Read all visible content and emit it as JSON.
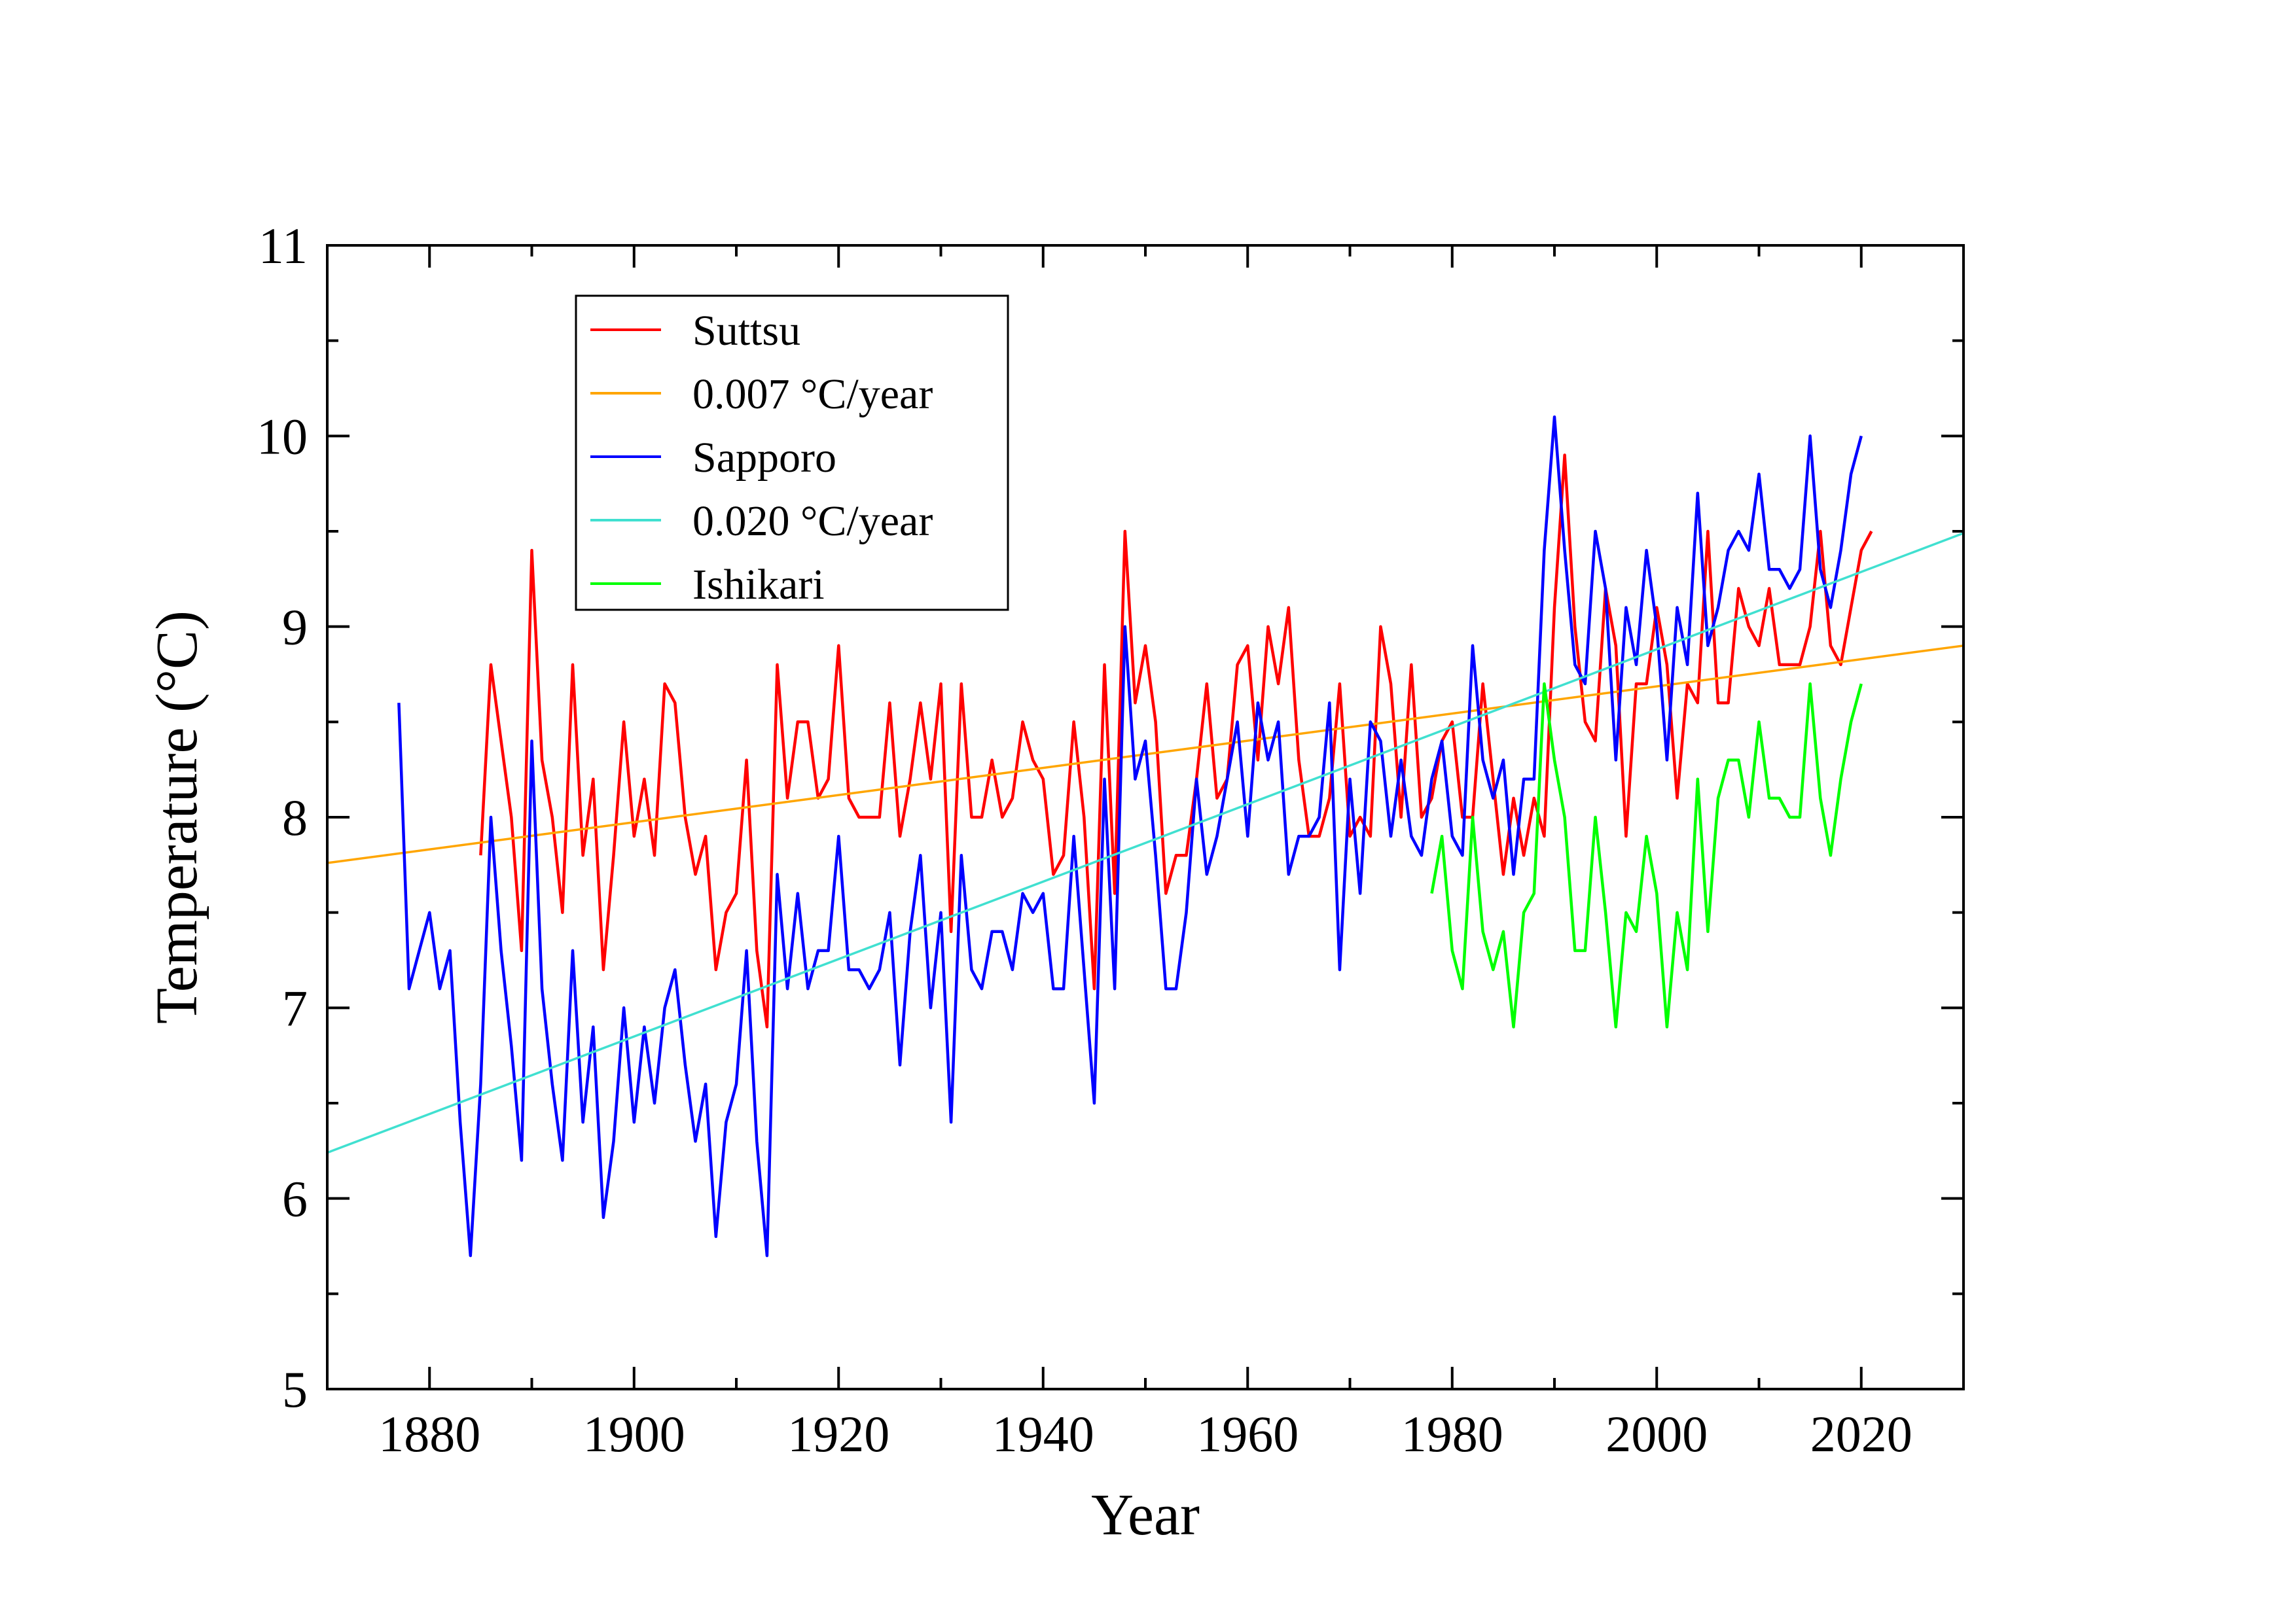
{
  "chart_data": {
    "type": "line",
    "title": "",
    "xlabel": "Year",
    "ylabel": "Temperature (°C)",
    "xlim": [
      1870,
      2030
    ],
    "ylim": [
      5,
      11
    ],
    "x_ticks": [
      1880,
      1900,
      1920,
      1940,
      1960,
      1980,
      2000,
      2020
    ],
    "y_ticks": [
      5,
      6,
      7,
      8,
      9,
      10,
      11
    ],
    "grid": false,
    "legend_position": "top-left",
    "series": [
      {
        "name": "Suttsu",
        "color": "#ff0000",
        "x_start": 1885,
        "values": [
          7.8,
          8.8,
          8.4,
          8.0,
          7.3,
          9.4,
          8.3,
          8.0,
          7.5,
          8.8,
          7.8,
          8.2,
          7.2,
          7.8,
          8.5,
          7.9,
          8.2,
          7.8,
          8.7,
          8.6,
          8.0,
          7.7,
          7.9,
          7.2,
          7.5,
          7.6,
          8.3,
          7.3,
          6.9,
          8.8,
          8.1,
          8.5,
          8.5,
          8.1,
          8.2,
          8.9,
          8.1,
          8.0,
          8.0,
          8.0,
          8.6,
          7.9,
          8.2,
          8.6,
          8.2,
          8.7,
          7.4,
          8.7,
          8.0,
          8.0,
          8.3,
          8.0,
          8.1,
          8.5,
          8.3,
          8.2,
          7.7,
          7.8,
          8.5,
          8.0,
          7.1,
          8.8,
          7.6,
          9.5,
          8.6,
          8.9,
          8.5,
          7.6,
          7.8,
          7.8,
          8.2,
          8.7,
          8.1,
          8.2,
          8.8,
          8.9,
          8.3,
          9.0,
          8.7,
          9.1,
          8.3,
          7.9,
          7.9,
          8.1,
          8.7,
          7.9,
          8.0,
          7.9,
          9.0,
          8.7,
          8.0,
          8.8,
          8.0,
          8.1,
          8.4,
          8.5,
          8.0,
          8.0,
          8.7,
          8.2,
          7.7,
          8.1,
          7.8,
          8.1,
          7.9,
          9.1,
          9.9,
          9.0,
          8.5,
          8.4,
          9.2,
          8.9,
          7.9,
          8.7,
          8.7,
          9.1,
          8.8,
          8.1,
          8.7,
          8.6,
          9.5,
          8.6,
          8.6,
          9.2,
          9.0,
          8.9,
          9.2,
          8.8,
          8.8,
          8.8,
          9.0,
          9.5,
          8.9,
          8.8,
          9.1,
          9.4,
          9.5
        ]
      },
      {
        "name": "0.007 °C/year",
        "color": "#ffa500",
        "trend": {
          "x": [
            1870,
            2030
          ],
          "y": [
            7.76,
            8.9
          ]
        }
      },
      {
        "name": "Sapporo",
        "color": "#0000ff",
        "x_start": 1877,
        "values": [
          8.6,
          7.1,
          7.3,
          7.5,
          7.1,
          7.3,
          6.4,
          5.7,
          6.6,
          8.0,
          7.3,
          6.8,
          6.2,
          8.4,
          7.1,
          6.6,
          6.2,
          7.3,
          6.4,
          6.9,
          5.9,
          6.3,
          7.0,
          6.4,
          6.9,
          6.5,
          7.0,
          7.2,
          6.7,
          6.3,
          6.6,
          5.8,
          6.4,
          6.6,
          7.3,
          6.3,
          5.7,
          7.7,
          7.1,
          7.6,
          7.1,
          7.3,
          7.3,
          7.9,
          7.2,
          7.2,
          7.1,
          7.2,
          7.5,
          6.7,
          7.4,
          7.8,
          7.0,
          7.5,
          6.4,
          7.8,
          7.2,
          7.1,
          7.4,
          7.4,
          7.2,
          7.6,
          7.5,
          7.6,
          7.1,
          7.1,
          7.9,
          7.2,
          6.5,
          8.2,
          7.1,
          9.0,
          8.2,
          8.4,
          7.8,
          7.1,
          7.1,
          7.5,
          8.2,
          7.7,
          7.9,
          8.2,
          8.5,
          7.9,
          8.6,
          8.3,
          8.5,
          7.7,
          7.9,
          7.9,
          8.0,
          8.6,
          7.2,
          8.2,
          7.6,
          8.5,
          8.4,
          7.9,
          8.3,
          7.9,
          7.8,
          8.2,
          8.4,
          7.9,
          7.8,
          8.9,
          8.3,
          8.1,
          8.3,
          7.7,
          8.2,
          8.2,
          9.4,
          10.1,
          9.4,
          8.8,
          8.7,
          9.5,
          9.2,
          8.3,
          9.1,
          8.8,
          9.4,
          9.0,
          8.3,
          9.1,
          8.8,
          9.7,
          8.9,
          9.1,
          9.4,
          9.5,
          9.4,
          9.8,
          9.3,
          9.3,
          9.2,
          9.3,
          10.0,
          9.3,
          9.1,
          9.4,
          9.8,
          10.0
        ]
      },
      {
        "name": "0.020 °C/year",
        "color": "#40e0d0",
        "trend": {
          "x": [
            1870,
            2030
          ],
          "y": [
            6.24,
            9.49
          ]
        }
      },
      {
        "name": "Ishikari",
        "color": "#00ff00",
        "x_start": 1978,
        "values": [
          7.6,
          7.9,
          7.3,
          7.1,
          8.0,
          7.4,
          7.2,
          7.4,
          6.9,
          7.5,
          7.6,
          8.7,
          8.3,
          8.0,
          7.3,
          7.3,
          8.0,
          7.5,
          6.9,
          7.5,
          7.4,
          7.9,
          7.6,
          6.9,
          7.5,
          7.2,
          8.2,
          7.4,
          8.1,
          8.3,
          8.3,
          8.0,
          8.5,
          8.1,
          8.1,
          8.0,
          8.0,
          8.7,
          8.1,
          7.8,
          8.2,
          8.5,
          8.7
        ]
      }
    ]
  }
}
